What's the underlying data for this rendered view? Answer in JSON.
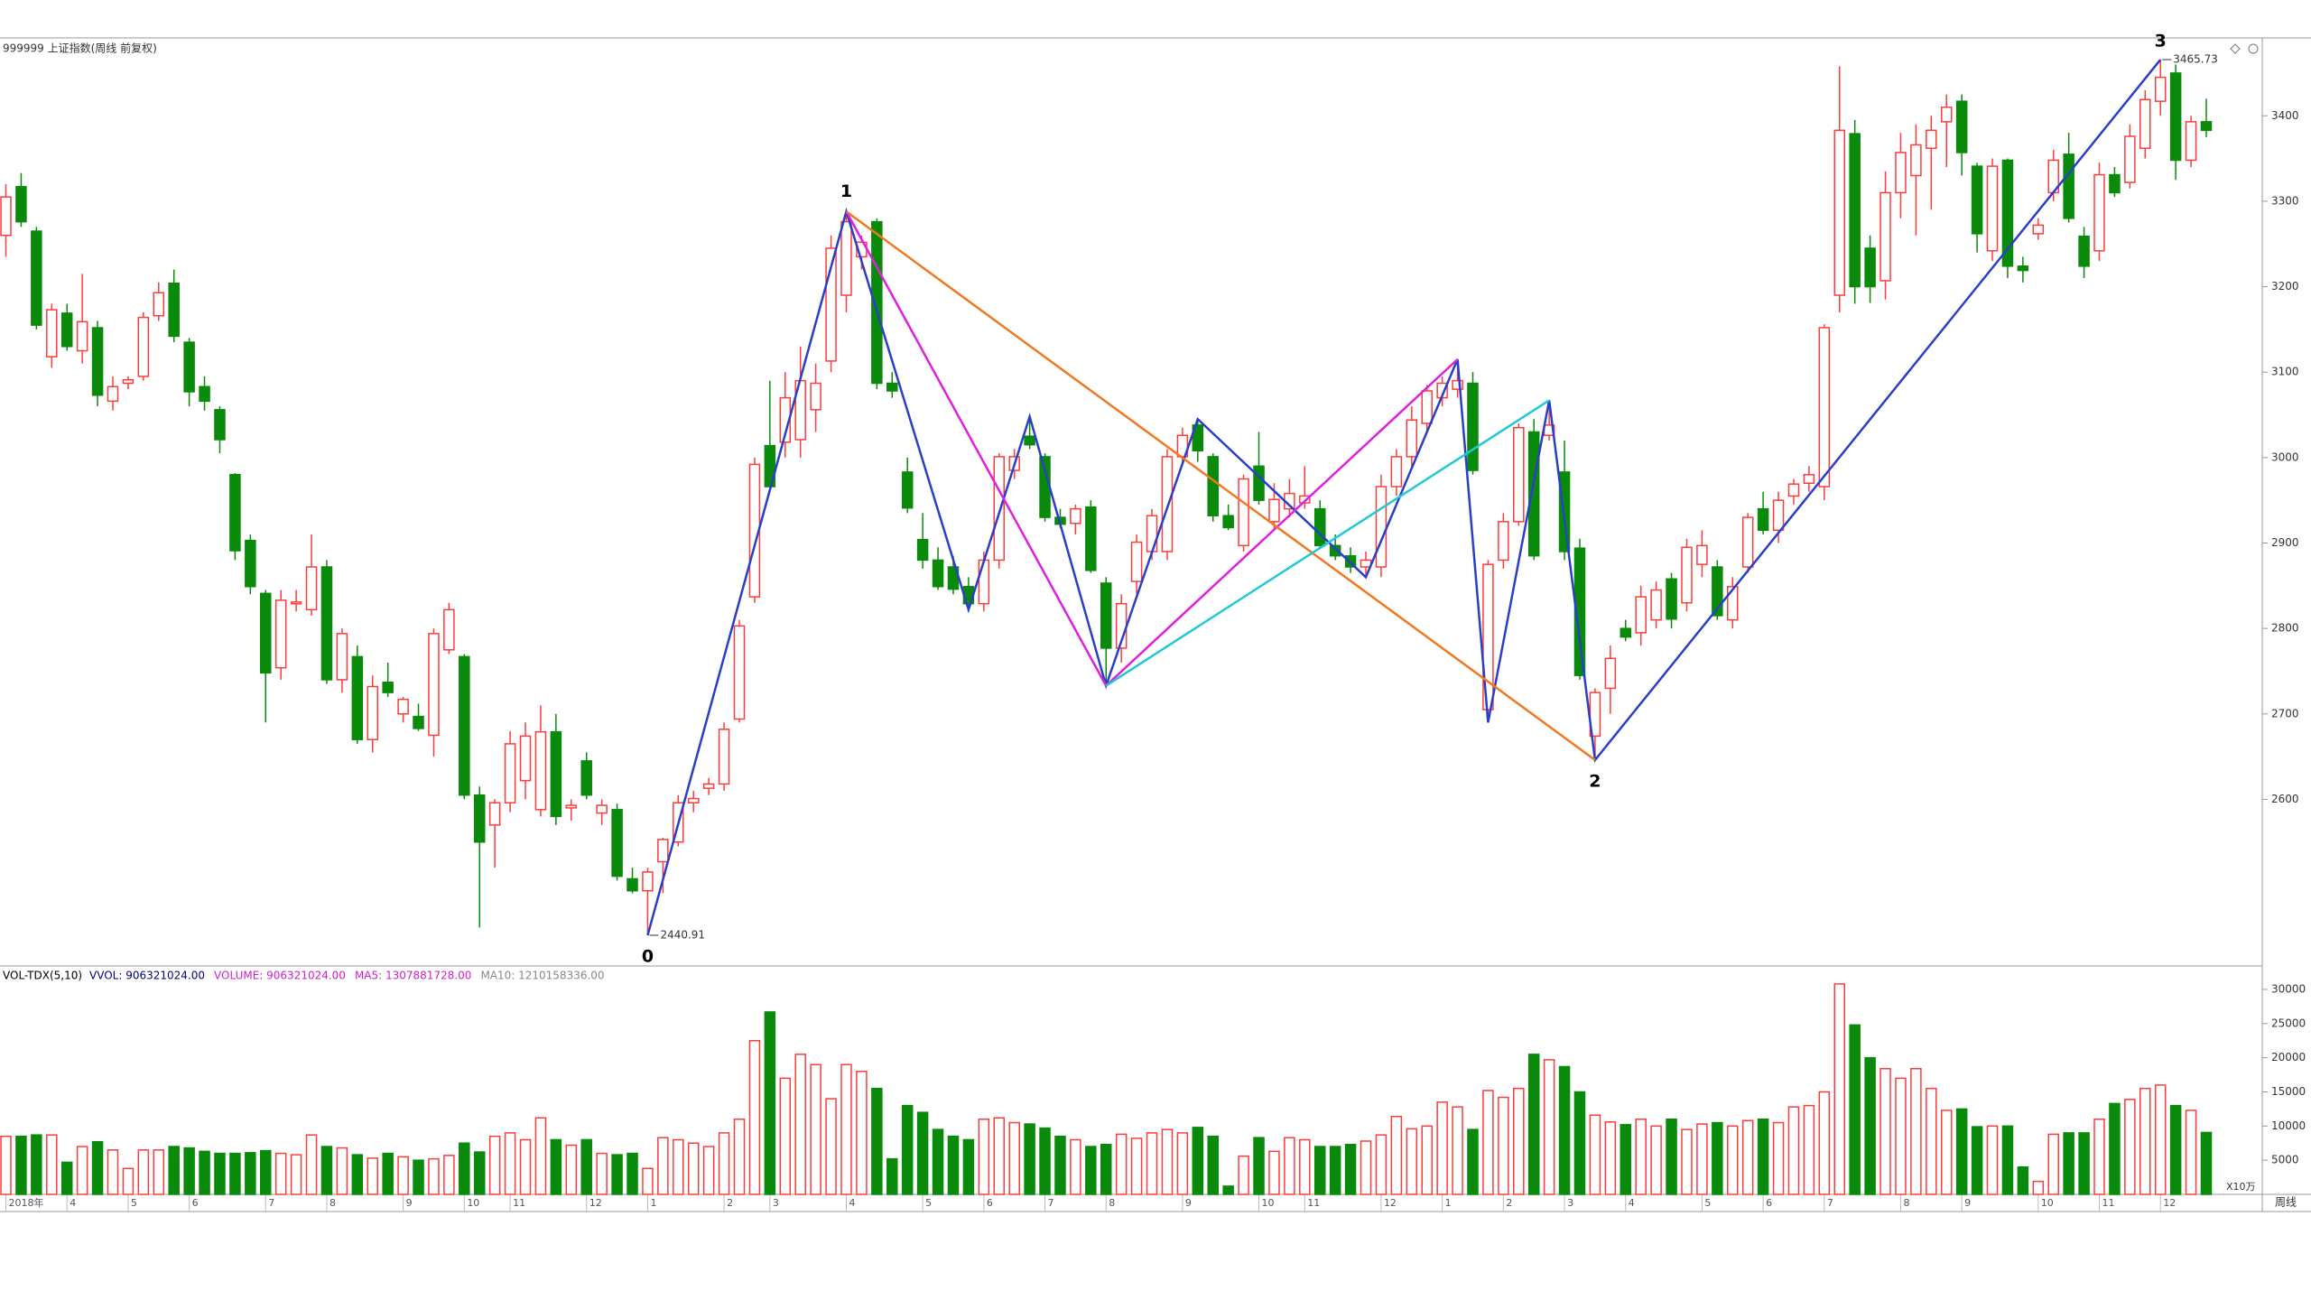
{
  "chart_data": [
    {
      "type": "candlestick",
      "title": "999999 上证指数(周线 前复权)",
      "colors": {
        "up": "#ff3b3b",
        "down": "#0a8a0a"
      },
      "ylim": [
        2405,
        3470
      ],
      "yticks": [
        2600,
        2700,
        2800,
        2900,
        3000,
        3100,
        3200,
        3300,
        3400
      ],
      "wave_labels": [
        "0",
        "1",
        "2",
        "3"
      ],
      "x_labels": [
        "2018年",
        "4",
        "5",
        "6",
        "7",
        "8",
        "9",
        "10",
        "11",
        "12",
        "1",
        "2",
        "3",
        "4",
        "5",
        "6",
        "7",
        "8",
        "9",
        "10",
        "11",
        "12",
        "1",
        "2",
        "3",
        "4",
        "5",
        "6",
        "7",
        "8",
        "9",
        "10",
        "11",
        "12"
      ],
      "lines": [
        {
          "color": "#2a3fc8"
        },
        {
          "color": "#e020e0"
        },
        {
          "color": "#f07820"
        },
        {
          "color": "#20c8d8"
        }
      ],
      "ohlc": [
        [
          3260,
          3320,
          3235,
          3305
        ],
        [
          3317,
          3333,
          3270,
          3276
        ],
        [
          3265,
          3270,
          3150,
          3155
        ],
        [
          3118,
          3180,
          3105,
          3173
        ],
        [
          3169,
          3180,
          3125,
          3130
        ],
        [
          3125,
          3215,
          3110,
          3159
        ],
        [
          3152,
          3160,
          3060,
          3073
        ],
        [
          3066,
          3095,
          3055,
          3083
        ],
        [
          3087,
          3095,
          3080,
          3091
        ],
        [
          3095,
          3170,
          3090,
          3164
        ],
        [
          3166,
          3205,
          3160,
          3193
        ],
        [
          3204,
          3220,
          3135,
          3142
        ],
        [
          3135,
          3140,
          3060,
          3077
        ],
        [
          3083,
          3095,
          3055,
          3066
        ],
        [
          3056,
          3060,
          3005,
          3021
        ],
        [
          2980,
          2982,
          2880,
          2891
        ],
        [
          2903,
          2910,
          2840,
          2849
        ],
        [
          2841,
          2845,
          2690,
          2748
        ],
        [
          2754,
          2845,
          2740,
          2833
        ],
        [
          2829,
          2845,
          2820,
          2831
        ],
        [
          2822,
          2910,
          2815,
          2872
        ],
        [
          2872,
          2880,
          2735,
          2740
        ],
        [
          2740,
          2800,
          2725,
          2794
        ],
        [
          2767,
          2780,
          2665,
          2670
        ],
        [
          2670,
          2745,
          2655,
          2732
        ],
        [
          2737,
          2760,
          2720,
          2725
        ],
        [
          2700,
          2720,
          2690,
          2717
        ],
        [
          2697,
          2712,
          2680,
          2683
        ],
        [
          2675,
          2800,
          2650,
          2794
        ],
        [
          2775,
          2830,
          2770,
          2822
        ],
        [
          2767,
          2770,
          2600,
          2605
        ],
        [
          2605,
          2615,
          2450,
          2550
        ],
        [
          2570,
          2600,
          2520,
          2596
        ],
        [
          2596,
          2680,
          2585,
          2665
        ],
        [
          2622,
          2690,
          2600,
          2674
        ],
        [
          2588,
          2710,
          2580,
          2679
        ],
        [
          2679,
          2700,
          2570,
          2580
        ],
        [
          2590,
          2600,
          2575,
          2593
        ],
        [
          2645,
          2655,
          2600,
          2605
        ],
        [
          2584,
          2600,
          2570,
          2593
        ],
        [
          2588,
          2595,
          2505,
          2510
        ],
        [
          2507,
          2520,
          2490,
          2493
        ],
        [
          2493,
          2520,
          2440.91,
          2515
        ],
        [
          2527,
          2555,
          2490,
          2553
        ],
        [
          2550,
          2605,
          2545,
          2596
        ],
        [
          2596,
          2610,
          2585,
          2601
        ],
        [
          2613,
          2625,
          2605,
          2618
        ],
        [
          2618,
          2690,
          2610,
          2682
        ],
        [
          2694,
          2810,
          2690,
          2803
        ],
        [
          2837,
          3000,
          2830,
          2992
        ],
        [
          3014,
          3090,
          2960,
          2966
        ],
        [
          3018,
          3100,
          3000,
          3070
        ],
        [
          3021,
          3130,
          3000,
          3090
        ],
        [
          3056,
          3110,
          3030,
          3087
        ],
        [
          3113,
          3260,
          3100,
          3245
        ],
        [
          3190,
          3288,
          3170,
          3276
        ],
        [
          3235,
          3260,
          3220,
          3252
        ],
        [
          3276,
          3280,
          3080,
          3087
        ],
        [
          3087,
          3100,
          3070,
          3078
        ],
        [
          2983,
          3000,
          2935,
          2941
        ],
        [
          2904,
          2935,
          2870,
          2880
        ],
        [
          2880,
          2895,
          2845,
          2849
        ],
        [
          2872,
          2885,
          2840,
          2846
        ],
        [
          2849,
          2860,
          2822,
          2829
        ],
        [
          2829,
          2890,
          2820,
          2880
        ],
        [
          2880,
          3005,
          2870,
          3001
        ],
        [
          2985,
          3010,
          2975,
          3001
        ],
        [
          3025,
          3048,
          3010,
          3015
        ],
        [
          3001,
          3005,
          2925,
          2930
        ],
        [
          2930,
          2940,
          2918,
          2922
        ],
        [
          2923,
          2945,
          2910,
          2940
        ],
        [
          2942,
          2950,
          2865,
          2868
        ],
        [
          2853,
          2860,
          2733,
          2777
        ],
        [
          2777,
          2840,
          2760,
          2829
        ],
        [
          2855,
          2910,
          2840,
          2901
        ],
        [
          2890,
          2940,
          2880,
          2932
        ],
        [
          2890,
          3010,
          2880,
          3001
        ],
        [
          3001,
          3035,
          2995,
          3026
        ],
        [
          3038,
          3045,
          2995,
          3008
        ],
        [
          3001,
          3005,
          2925,
          2932
        ],
        [
          2932,
          2945,
          2915,
          2918
        ],
        [
          2897,
          2980,
          2890,
          2975
        ],
        [
          2990,
          3030,
          2945,
          2950
        ],
        [
          2925,
          2970,
          2915,
          2951
        ],
        [
          2940,
          2975,
          2930,
          2958
        ],
        [
          2947,
          2990,
          2940,
          2955
        ],
        [
          2940,
          2950,
          2895,
          2897
        ],
        [
          2897,
          2910,
          2880,
          2885
        ],
        [
          2885,
          2895,
          2865,
          2872
        ],
        [
          2872,
          2890,
          2860,
          2880
        ],
        [
          2872,
          2980,
          2860,
          2966
        ],
        [
          2966,
          3010,
          2955,
          3001
        ],
        [
          3001,
          3060,
          2990,
          3044
        ],
        [
          3040,
          3085,
          3030,
          3078
        ],
        [
          3070,
          3095,
          3060,
          3087
        ],
        [
          3080,
          3115,
          3070,
          3090
        ],
        [
          3087,
          3100,
          2980,
          2985
        ],
        [
          2705,
          2880,
          2690,
          2875
        ],
        [
          2880,
          2935,
          2870,
          2925
        ],
        [
          2925,
          3040,
          2920,
          3035
        ],
        [
          3030,
          3045,
          2880,
          2885
        ],
        [
          3026,
          3067,
          3020,
          3038
        ],
        [
          2983,
          3020,
          2880,
          2890
        ],
        [
          2894,
          2905,
          2740,
          2745
        ],
        [
          2674,
          2730,
          2646,
          2725
        ],
        [
          2730,
          2780,
          2700,
          2765
        ],
        [
          2800,
          2810,
          2785,
          2790
        ],
        [
          2795,
          2850,
          2780,
          2837
        ],
        [
          2810,
          2855,
          2800,
          2845
        ],
        [
          2858,
          2865,
          2800,
          2811
        ],
        [
          2830,
          2905,
          2820,
          2895
        ],
        [
          2875,
          2915,
          2860,
          2897
        ],
        [
          2872,
          2880,
          2810,
          2815
        ],
        [
          2810,
          2860,
          2800,
          2849
        ],
        [
          2872,
          2935,
          2865,
          2930
        ],
        [
          2940,
          2960,
          2910,
          2915
        ],
        [
          2915,
          2960,
          2900,
          2950
        ],
        [
          2955,
          2975,
          2945,
          2969
        ],
        [
          2970,
          2990,
          2960,
          2980
        ],
        [
          2966,
          3156,
          2950,
          3152
        ],
        [
          3190,
          3458,
          3170,
          3383
        ],
        [
          3379,
          3395,
          3180,
          3200
        ],
        [
          3245,
          3260,
          3181,
          3200
        ],
        [
          3207,
          3335,
          3185,
          3310
        ],
        [
          3310,
          3380,
          3280,
          3357
        ],
        [
          3330,
          3390,
          3260,
          3366
        ],
        [
          3362,
          3400,
          3290,
          3383
        ],
        [
          3393,
          3425,
          3340,
          3410
        ],
        [
          3417,
          3425,
          3330,
          3357
        ],
        [
          3341,
          3345,
          3240,
          3262
        ],
        [
          3242,
          3350,
          3230,
          3341
        ],
        [
          3348,
          3350,
          3210,
          3224
        ],
        [
          3224,
          3235,
          3205,
          3219
        ],
        [
          3262,
          3280,
          3255,
          3272
        ],
        [
          3310,
          3360,
          3300,
          3348
        ],
        [
          3355,
          3380,
          3275,
          3280
        ],
        [
          3259,
          3270,
          3210,
          3224
        ],
        [
          3242,
          3345,
          3230,
          3331
        ],
        [
          3331,
          3340,
          3305,
          3310
        ],
        [
          3322,
          3390,
          3315,
          3376
        ],
        [
          3362,
          3430,
          3350,
          3419
        ],
        [
          3417,
          3465.73,
          3400,
          3445
        ],
        [
          3450,
          3460,
          3325,
          3348
        ],
        [
          3348,
          3400,
          3340,
          3393
        ],
        [
          3393,
          3420,
          3375,
          3383
        ]
      ]
    },
    {
      "type": "bar",
      "title": "VOL-TDX(5,10)",
      "legend": [
        {
          "label": "VVOL: 906321024.00",
          "color": "#000080"
        },
        {
          "label": "VOLUME: 906321024.00",
          "color": "#d020d0"
        },
        {
          "label": "MA5: 1307881728.00",
          "color": "#d020d0"
        },
        {
          "label": "MA10: 1210158336.00",
          "color": "#888888"
        }
      ],
      "unit_label": "X10万",
      "period_label": "周线",
      "ylim": [
        0,
        33300
      ],
      "yticks": [
        5000,
        10000,
        15000,
        20000,
        25000,
        30000
      ],
      "values": [
        8500,
        8500,
        8700,
        8700,
        4700,
        7000,
        7700,
        6500,
        3800,
        6500,
        6500,
        7000,
        6800,
        6300,
        6000,
        6000,
        6100,
        6400,
        6000,
        5800,
        8700,
        7000,
        6800,
        5800,
        5300,
        6000,
        5500,
        5000,
        5200,
        5700,
        7500,
        6200,
        8500,
        9000,
        8000,
        11200,
        8000,
        7200,
        8000,
        6000,
        5800,
        6000,
        3800,
        8300,
        8000,
        7500,
        7000,
        9000,
        11000,
        22500,
        26700,
        17000,
        20500,
        19000,
        14000,
        19000,
        18000,
        15500,
        5200,
        13000,
        12000,
        9500,
        8500,
        8000,
        11000,
        11200,
        10500,
        10300,
        9700,
        8500,
        8000,
        7000,
        7300,
        8800,
        8200,
        9000,
        9500,
        9000,
        9800,
        8500,
        1200,
        5600,
        8300,
        6300,
        8300,
        8000,
        7000,
        7000,
        7300,
        7800,
        8700,
        11400,
        9600,
        10000,
        13500,
        12800,
        9500,
        15200,
        14200,
        15500,
        20500,
        19700,
        18700,
        15000,
        11600,
        10600,
        10200,
        11000,
        10000,
        11000,
        9500,
        10300,
        10500,
        10000,
        10800,
        11000,
        10500,
        12800,
        13000,
        15000,
        30800,
        24800,
        20000,
        18400,
        17000,
        18400,
        15500,
        12300,
        12500,
        9900,
        10000,
        10000,
        4000,
        1900,
        8800,
        9000,
        9000,
        11000,
        13300,
        13900,
        15500,
        16000,
        13000,
        12300,
        9063
      ]
    }
  ]
}
